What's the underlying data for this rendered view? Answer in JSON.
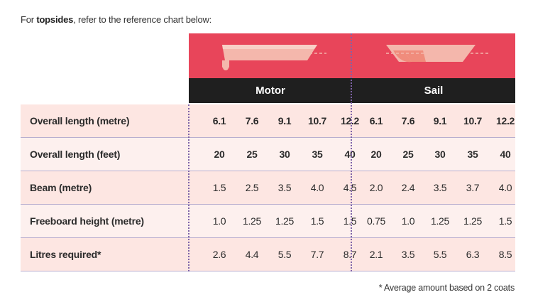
{
  "intro": {
    "prefix": "For ",
    "bold": "topsides",
    "suffix": ", refer to the reference chart below:"
  },
  "groups": {
    "motor": "Motor",
    "sail": "Sail"
  },
  "rows": [
    {
      "label": "Overall length (metre)",
      "bold": true,
      "motor": [
        "6.1",
        "7.6",
        "9.1",
        "10.7",
        "12.2"
      ],
      "sail": [
        "6.1",
        "7.6",
        "9.1",
        "10.7",
        "12.2"
      ]
    },
    {
      "label": "Overall length (feet)",
      "bold": true,
      "motor": [
        "20",
        "25",
        "30",
        "35",
        "40"
      ],
      "sail": [
        "20",
        "25",
        "30",
        "35",
        "40"
      ]
    },
    {
      "label": "Beam (metre)",
      "bold": false,
      "motor": [
        "1.5",
        "2.5",
        "3.5",
        "4.0",
        "4.5"
      ],
      "sail": [
        "2.0",
        "2.4",
        "3.5",
        "3.7",
        "4.0"
      ]
    },
    {
      "label": "Freeboard height (metre)",
      "bold": false,
      "motor": [
        "1.0",
        "1.25",
        "1.25",
        "1.5",
        "1.5"
      ],
      "sail": [
        "0.75",
        "1.0",
        "1.25",
        "1.25",
        "1.5"
      ]
    },
    {
      "label": "Litres required*",
      "bold": false,
      "motor": [
        "2.6",
        "4.4",
        "5.5",
        "7.7",
        "8.7"
      ],
      "sail": [
        "2.1",
        "3.5",
        "5.5",
        "6.3",
        "8.5"
      ]
    }
  ],
  "footnote": "* Average amount based on 2 coats",
  "colors": {
    "header_red": "#e8455a",
    "header_black": "#1f1f1f",
    "row_a": "#fde6e2",
    "row_b": "#fdf0ee",
    "divider": "#7f63a8"
  },
  "icons": {
    "motor": "motor-boat-icon",
    "sail": "sail-boat-hull-icon"
  }
}
